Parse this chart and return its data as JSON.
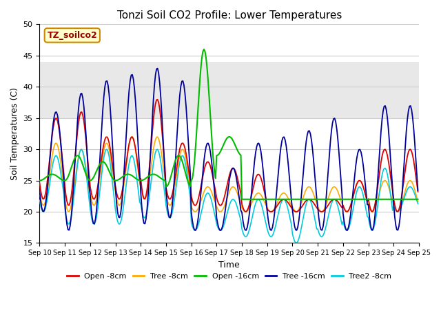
{
  "title": "Tonzi Soil CO2 Profile: Lower Temperatures",
  "xlabel": "Time",
  "ylabel": "Soil Temperatures (C)",
  "ylim": [
    15,
    50
  ],
  "yticks": [
    15,
    20,
    25,
    30,
    35,
    40,
    45,
    50
  ],
  "legend_label": "TZ_soilco2",
  "legend_box_color": "#ffffcc",
  "legend_box_edge": "#cc8800",
  "legend_label_color": "#990000",
  "background_color": "#ffffff",
  "plot_bg_color": "#ffffff",
  "grid_color": "#cccccc",
  "gray_band_low": 35,
  "gray_band_high": 44,
  "gray_band_color": "#e8e8e8",
  "series": {
    "open_8cm": {
      "color": "#dd0000",
      "label": "Open -8cm"
    },
    "tree_8cm": {
      "color": "#ffaa00",
      "label": "Tree -8cm"
    },
    "open_16cm": {
      "color": "#00bb00",
      "label": "Open -16cm"
    },
    "tree_16cm": {
      "color": "#000099",
      "label": "Tree -16cm"
    },
    "tree2_8cm": {
      "color": "#00ccdd",
      "label": "Tree2 -8cm"
    }
  },
  "xtick_labels": [
    "Sep 10",
    "Sep 11",
    "Sep 12",
    "Sep 13",
    "Sep 14",
    "Sep 15",
    "Sep 16",
    "Sep 17",
    "Sep 18",
    "Sep 19",
    "Sep 20",
    "Sep 21",
    "Sep 22",
    "Sep 23",
    "Sep 24",
    "Sep 25"
  ]
}
